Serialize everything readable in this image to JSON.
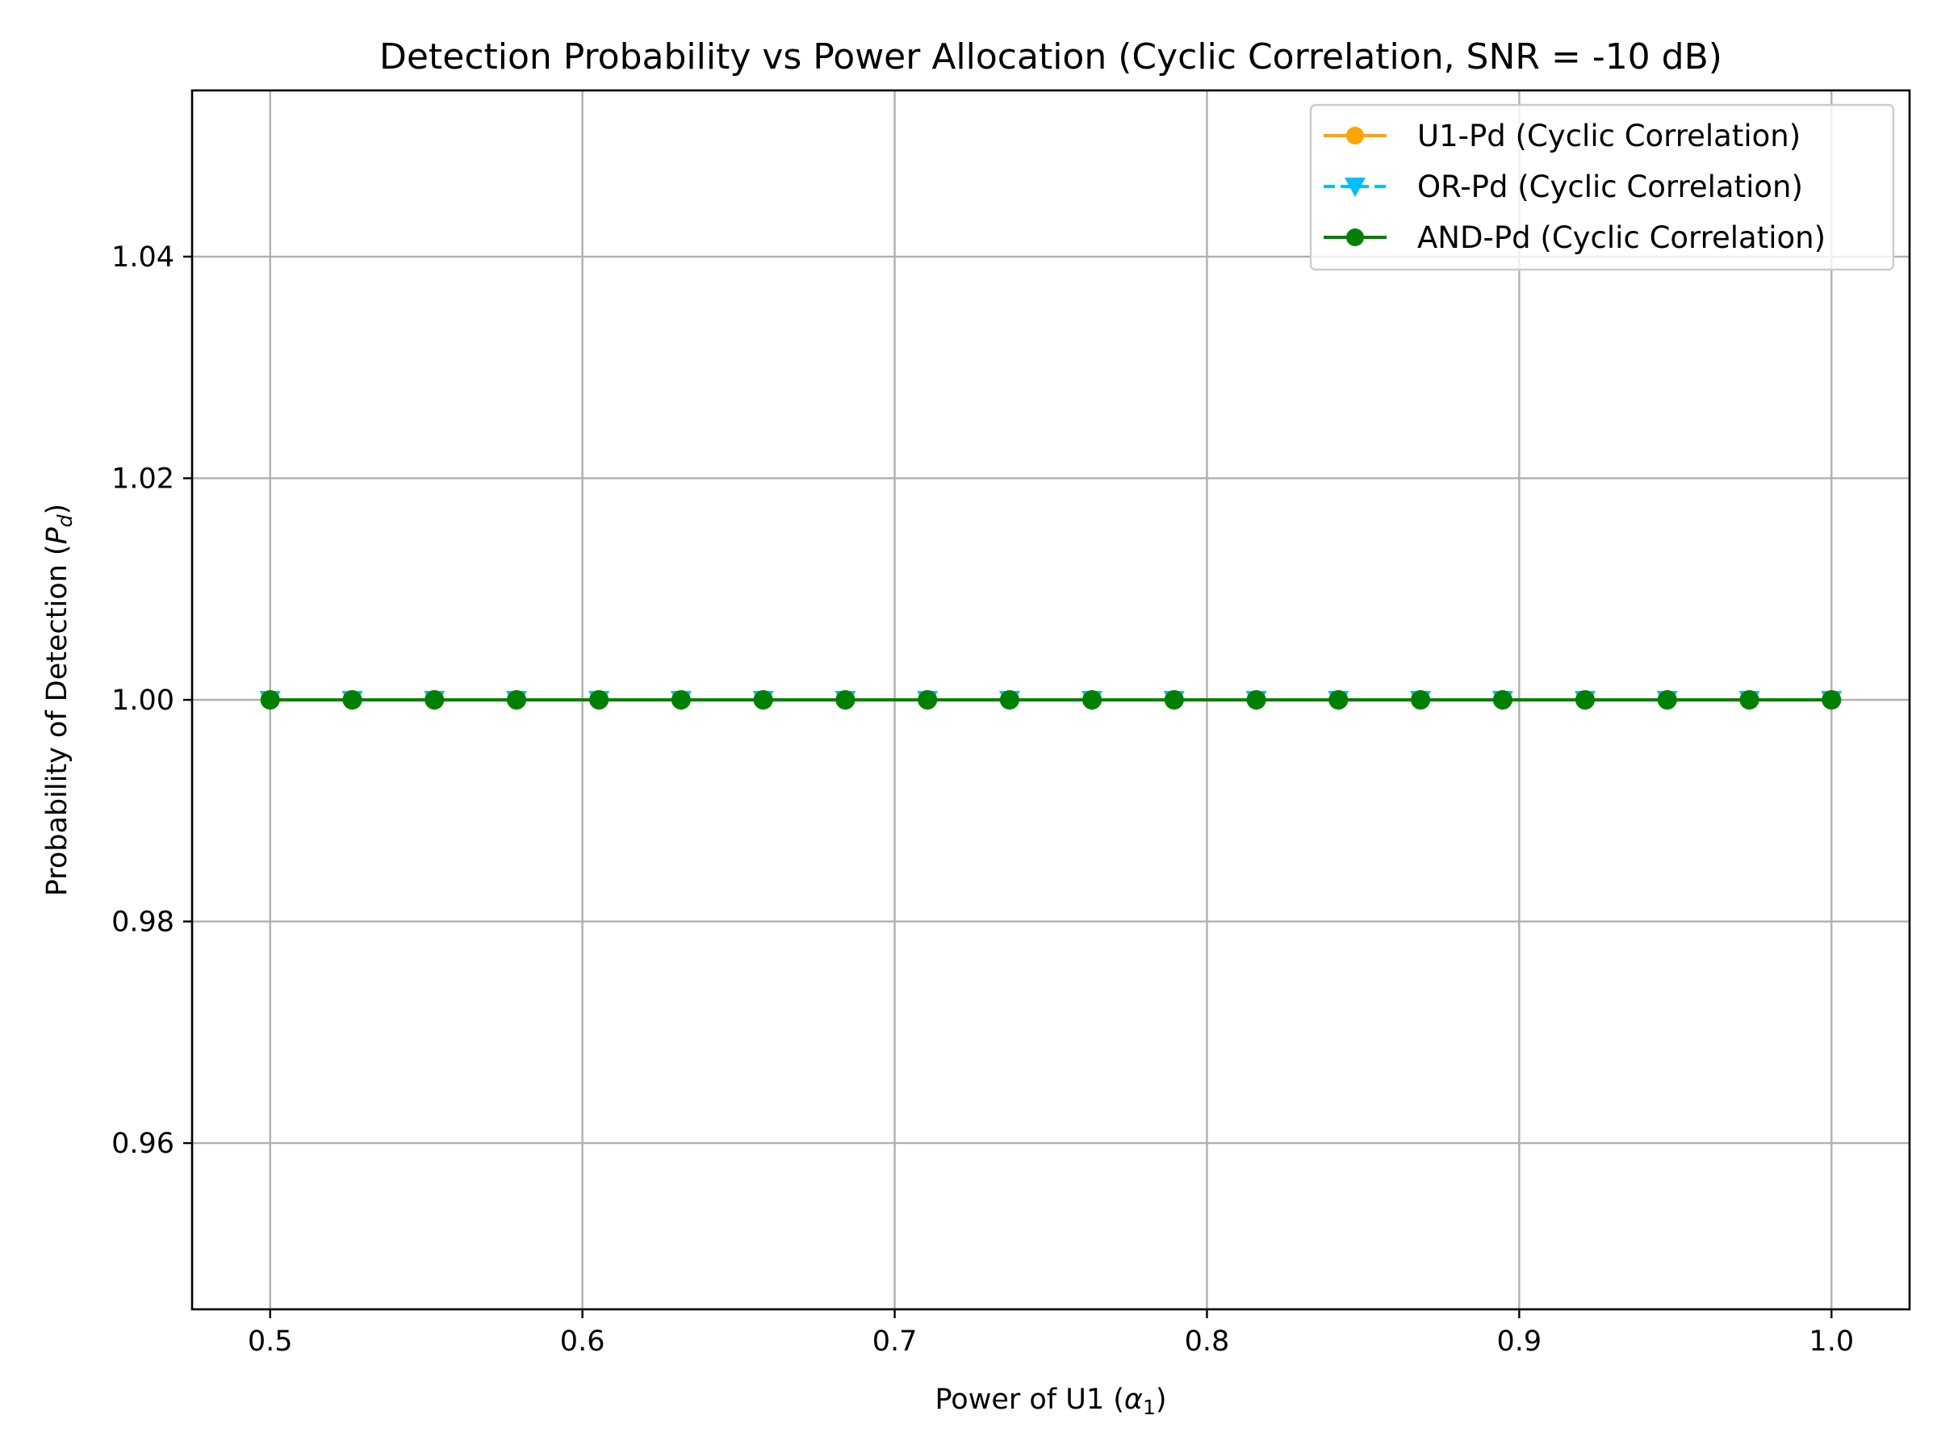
{
  "chart_data": {
    "type": "line",
    "title": "Detection Probability vs Power Allocation (Cyclic Correlation, SNR = -10 dB)",
    "xlabel": "Power of U1 (α₁)",
    "ylabel": "Probability of Detection (P_d)",
    "ylabel_parts": {
      "before": "Probability of Detection (",
      "symbol": "P",
      "subscript": "d",
      "after": ")"
    },
    "xlabel_parts": {
      "before": "Power of U1 (",
      "symbol": "α",
      "subscript": "1",
      "after": ")"
    },
    "xlim": [
      0.475,
      1.025
    ],
    "ylim": [
      0.945,
      1.055
    ],
    "x_ticks": [
      0.5,
      0.6,
      0.7,
      0.8,
      0.9,
      1.0
    ],
    "x_tick_labels": [
      "0.5",
      "0.6",
      "0.7",
      "0.8",
      "0.9",
      "1.0"
    ],
    "y_ticks": [
      0.96,
      0.98,
      1.0,
      1.02,
      1.04
    ],
    "y_tick_labels": [
      "0.96",
      "0.98",
      "1.00",
      "1.02",
      "1.04"
    ],
    "grid": true,
    "legend_position": "top-right",
    "x": [
      0.5,
      0.5263,
      0.5526,
      0.5789,
      0.6053,
      0.6316,
      0.6579,
      0.6842,
      0.7105,
      0.7368,
      0.7632,
      0.7895,
      0.8158,
      0.8421,
      0.8684,
      0.8947,
      0.9211,
      0.9474,
      0.9737,
      1.0
    ],
    "series": [
      {
        "name": "U1-Pd (Cyclic Correlation)",
        "color": "#ffa500",
        "line_style": "solid",
        "marker": "circle",
        "values": [
          1,
          1,
          1,
          1,
          1,
          1,
          1,
          1,
          1,
          1,
          1,
          1,
          1,
          1,
          1,
          1,
          1,
          1,
          1,
          1
        ]
      },
      {
        "name": "OR-Pd (Cyclic Correlation)",
        "color": "#00bfff",
        "line_style": "dashed",
        "marker": "triangle-down",
        "values": [
          1,
          1,
          1,
          1,
          1,
          1,
          1,
          1,
          1,
          1,
          1,
          1,
          1,
          1,
          1,
          1,
          1,
          1,
          1,
          1
        ]
      },
      {
        "name": "AND-Pd (Cyclic Correlation)",
        "color": "#008000",
        "line_style": "solid",
        "marker": "circle",
        "values": [
          1,
          1,
          1,
          1,
          1,
          1,
          1,
          1,
          1,
          1,
          1,
          1,
          1,
          1,
          1,
          1,
          1,
          1,
          1,
          1
        ]
      }
    ]
  }
}
